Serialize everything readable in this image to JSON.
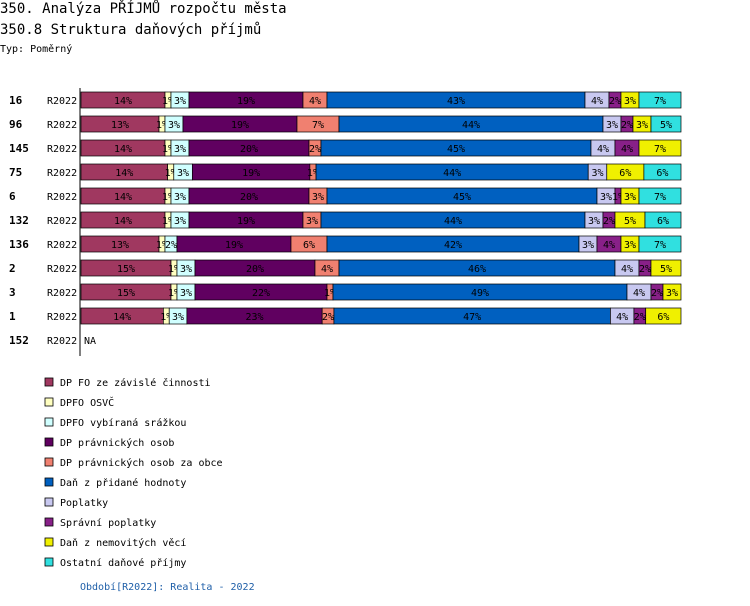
{
  "header": {
    "title": "350. Analýza PŘÍJMŮ rozpočtu města",
    "subtitle": "350.8 Struktura daňových příjmů",
    "type_label": "Typ: Poměrný"
  },
  "footer": {
    "text": "Období[R2022]: Realita - 2022"
  },
  "chart_data": {
    "type": "bar",
    "orientation": "horizontal",
    "stacked": true,
    "normalized": true,
    "period_label": "R2022",
    "missing_label": "NA",
    "rows": [
      {
        "id": "16",
        "values": [
          14,
          1,
          3,
          19,
          4,
          43,
          4,
          2,
          3,
          7
        ]
      },
      {
        "id": "96",
        "values": [
          13,
          1,
          3,
          19,
          7,
          44,
          3,
          2,
          3,
          5
        ]
      },
      {
        "id": "145",
        "values": [
          14,
          1,
          3,
          20,
          2,
          45,
          4,
          4,
          7,
          0
        ]
      },
      {
        "id": "75",
        "values": [
          14,
          1,
          3,
          19,
          1,
          44,
          3,
          0,
          6,
          6
        ]
      },
      {
        "id": "6",
        "values": [
          14,
          1,
          3,
          20,
          3,
          45,
          3,
          1,
          3,
          7
        ]
      },
      {
        "id": "132",
        "values": [
          14,
          1,
          3,
          19,
          3,
          44,
          3,
          2,
          5,
          6
        ]
      },
      {
        "id": "136",
        "values": [
          13,
          1,
          2,
          19,
          6,
          42,
          3,
          4,
          3,
          7
        ]
      },
      {
        "id": "2",
        "values": [
          15,
          1,
          3,
          20,
          4,
          46,
          4,
          2,
          5,
          0
        ]
      },
      {
        "id": "3",
        "values": [
          15,
          1,
          3,
          22,
          1,
          49,
          4,
          2,
          3,
          0
        ]
      },
      {
        "id": "1",
        "values": [
          14,
          1,
          3,
          23,
          2,
          47,
          4,
          2,
          6,
          0
        ]
      },
      {
        "id": "152",
        "values": null
      }
    ],
    "series": [
      {
        "name": "DP FO ze závislé činnosti",
        "color": "#a03860"
      },
      {
        "name": "DPFO OSVČ",
        "color": "#ffffc0"
      },
      {
        "name": "DPFO vybíraná srážkou",
        "color": "#d0ffff"
      },
      {
        "name": "DP právnických osob",
        "color": "#600060"
      },
      {
        "name": "DP právnických osob za obce",
        "color": "#f08070"
      },
      {
        "name": "Daň z přidané hodnoty",
        "color": "#0060c0"
      },
      {
        "name": "Poplatky",
        "color": "#c8c8f0"
      },
      {
        "name": "Správní poplatky",
        "color": "#882088"
      },
      {
        "name": "Daň z nemovitých věcí",
        "color": "#f0f000"
      },
      {
        "name": "Ostatní daňové příjmy",
        "color": "#30e0e0"
      }
    ]
  }
}
